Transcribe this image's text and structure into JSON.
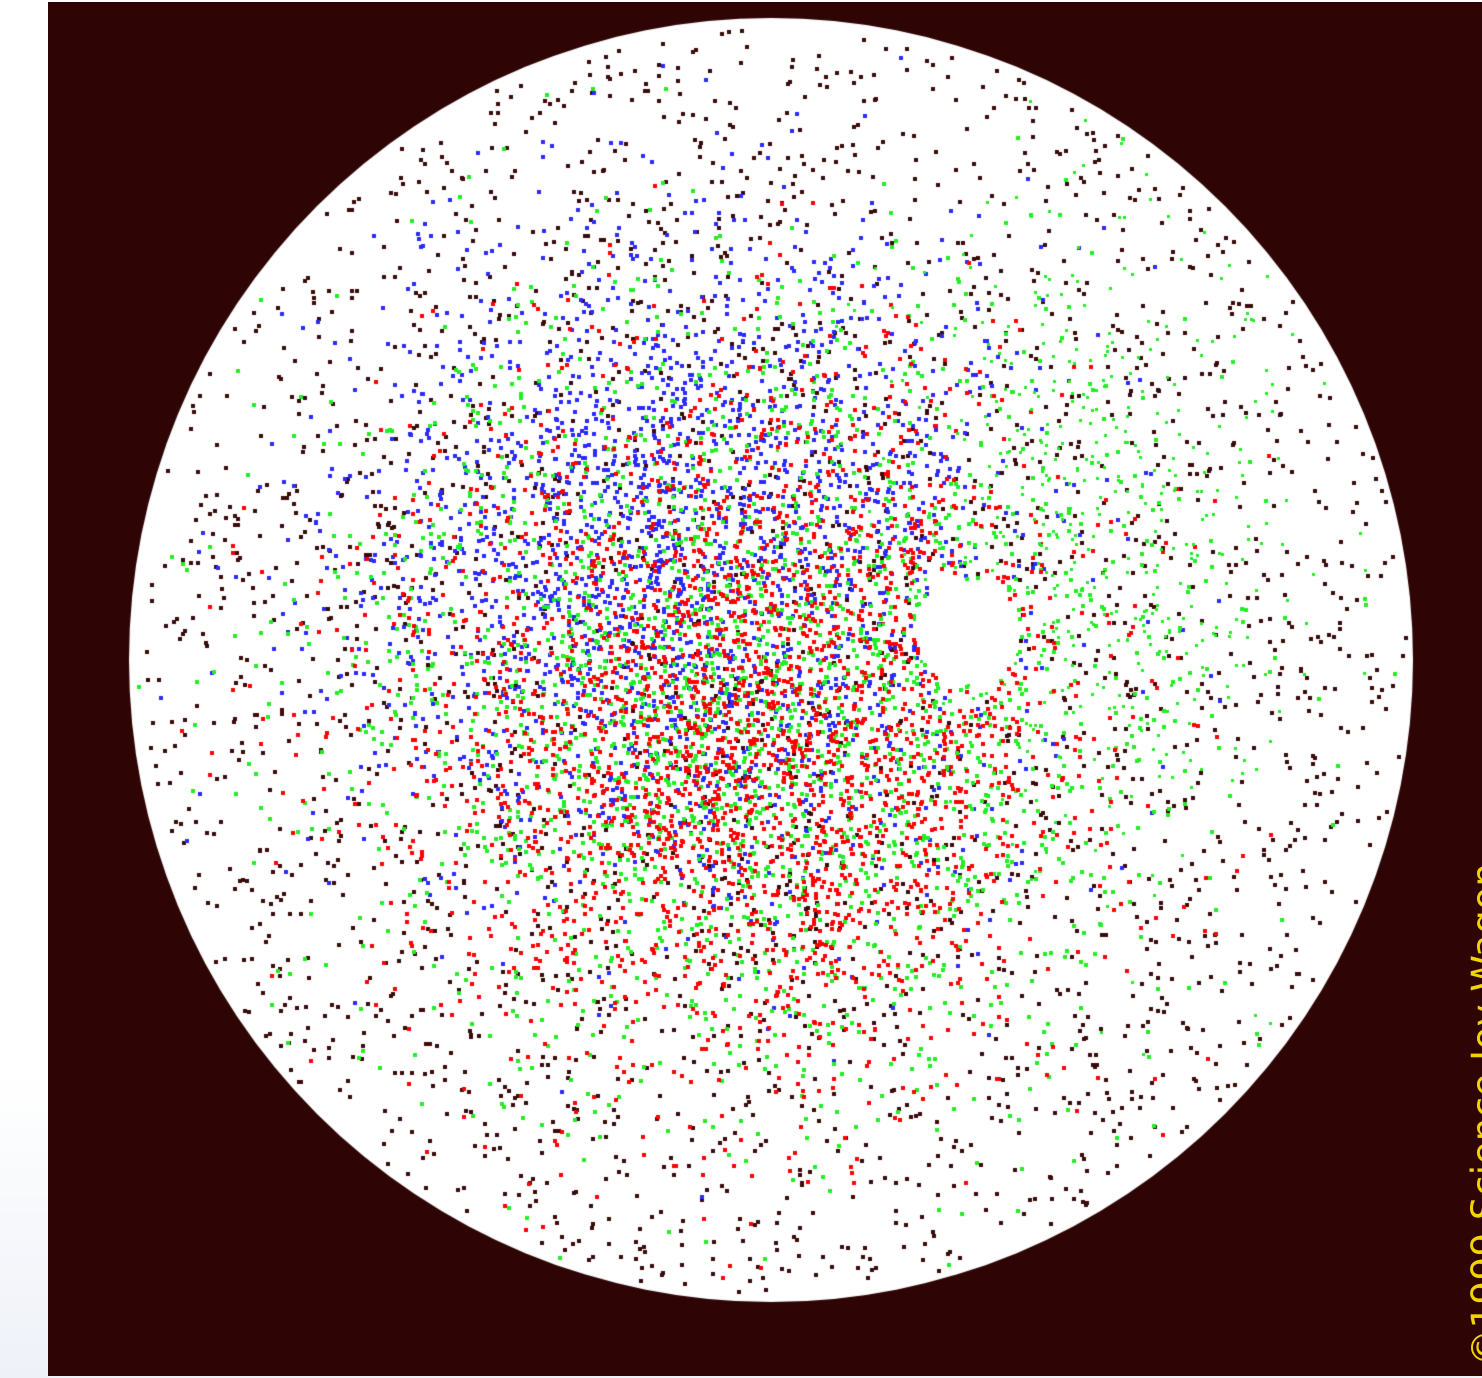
{
  "image": {
    "copyright": "©1999 Science Joy Wagon",
    "colors": {
      "background": "#2e0404",
      "disc": "#ffffff",
      "dot_dark": "#3a0a0a",
      "dot_red": "#ff0000",
      "dot_green": "#22ee22",
      "dot_blue": "#2a2aff",
      "copyright_text": "#f2d400"
    }
  }
}
